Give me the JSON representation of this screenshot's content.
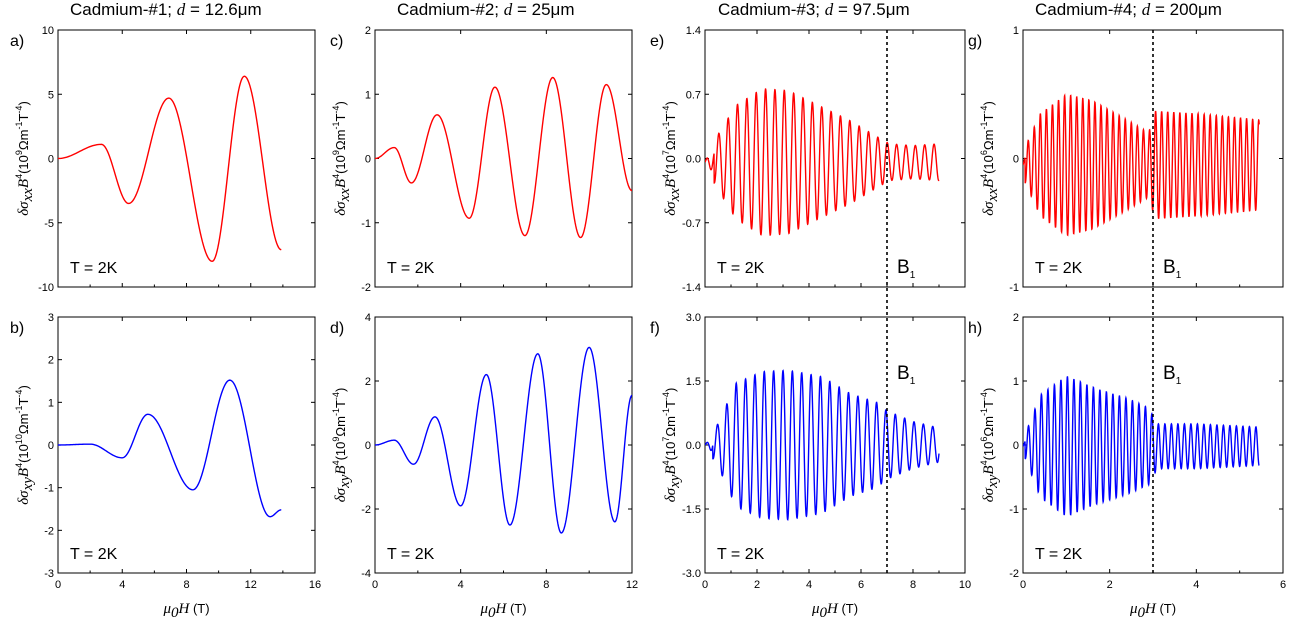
{
  "figure": {
    "temperature_label": "T = 2K",
    "marker_label_main": "B",
    "marker_label_sub": "1",
    "xlabel": {
      "symbol": "μ",
      "sub": "0",
      "var": "H",
      "unit": " (T)"
    }
  },
  "columns": [
    {
      "title_prefix": "Cadmium-#1; ",
      "title_var": "d",
      "title_suffix": " = 12.6μm"
    },
    {
      "title_prefix": "Cadmium-#2; ",
      "title_var": "d",
      "title_suffix": " = 25μm"
    },
    {
      "title_prefix": "Cadmium-#3; ",
      "title_var": "d",
      "title_suffix": " = 97.5μm"
    },
    {
      "title_prefix": "Cadmium-#4; ",
      "title_var": "d",
      "title_suffix": " = 200μm"
    }
  ],
  "colors": {
    "top_series": "#ff0000",
    "bottom_series": "#0000ff",
    "axes": "#000000"
  },
  "chart_data": [
    {
      "panel": "a)",
      "type": "line",
      "color": "#ff0000",
      "xlabel": "",
      "ylabel_sub": "xx",
      "ylabel_exp": "9",
      "xlim": [
        0,
        16
      ],
      "xticks": [
        0,
        4,
        8,
        12,
        16
      ],
      "ylim": [
        -10,
        10
      ],
      "yticks": [
        "10",
        "5",
        "0",
        "-5",
        "-10"
      ],
      "ytick_values": [
        10,
        5,
        0,
        -5,
        -10
      ],
      "envelope": [
        [
          0,
          0
        ],
        [
          2.7,
          1.1
        ],
        [
          4.4,
          3.5
        ],
        [
          6.9,
          4.7
        ],
        [
          9.6,
          8.0
        ],
        [
          11.6,
          6.4
        ],
        [
          13.9,
          7.1
        ]
      ],
      "freq": [
        [
          0,
          0.07
        ],
        [
          4.4,
          0.32
        ],
        [
          9.6,
          0.39
        ],
        [
          14,
          0.4
        ]
      ],
      "phase0": 0,
      "xmax_data": 13.9,
      "x_end_value": -7.1,
      "gen": "peaks",
      "peaks": [
        [
          0,
          0
        ],
        [
          2.7,
          1.1
        ],
        [
          4.4,
          -3.5
        ],
        [
          6.9,
          4.7
        ],
        [
          9.6,
          -8.0
        ],
        [
          11.6,
          6.4
        ],
        [
          13.9,
          -7.1
        ]
      ],
      "temperature": "T = 2K"
    },
    {
      "panel": "b)",
      "type": "line",
      "color": "#0000ff",
      "xlabel": "μ0H (T)",
      "ylabel_sub": "xy",
      "ylabel_exp": "10",
      "xlim": [
        0,
        16
      ],
      "xticks": [
        0,
        4,
        8,
        12,
        16
      ],
      "ylim": [
        -3,
        3
      ],
      "yticks": [
        "3",
        "2",
        "1",
        "0",
        "-1",
        "-2",
        "-3"
      ],
      "ytick_values": [
        3,
        2,
        1,
        0,
        -1,
        -2,
        -3
      ],
      "gen": "peaks",
      "peaks": [
        [
          0,
          0
        ],
        [
          2.0,
          0.02
        ],
        [
          4.0,
          -0.3
        ],
        [
          5.6,
          0.72
        ],
        [
          8.4,
          -1.05
        ],
        [
          10.7,
          1.52
        ],
        [
          13.2,
          -1.68
        ],
        [
          13.9,
          -1.52
        ]
      ],
      "temperature": "T = 2K"
    },
    {
      "panel": "c)",
      "type": "line",
      "color": "#ff0000",
      "xlabel": "",
      "ylabel_sub": "xx",
      "ylabel_exp": "9",
      "xlim": [
        0,
        12
      ],
      "xticks": [
        0,
        4,
        8,
        12
      ],
      "ylim": [
        -2,
        2
      ],
      "yticks": [
        "2",
        "1",
        "0",
        "-1",
        "-2"
      ],
      "ytick_values": [
        2,
        1,
        0,
        -1,
        -2
      ],
      "gen": "peaks",
      "peaks": [
        [
          0,
          0
        ],
        [
          0.9,
          0.17
        ],
        [
          1.7,
          -0.38
        ],
        [
          2.9,
          0.68
        ],
        [
          4.4,
          -0.93
        ],
        [
          5.6,
          1.11
        ],
        [
          7.0,
          -1.2
        ],
        [
          8.3,
          1.26
        ],
        [
          9.6,
          -1.23
        ],
        [
          10.8,
          1.15
        ],
        [
          12.0,
          -0.5
        ]
      ],
      "temperature": "T = 2K"
    },
    {
      "panel": "d)",
      "type": "line",
      "color": "#0000ff",
      "xlabel": "μ0H (T)",
      "ylabel_sub": "xy",
      "ylabel_exp": "9",
      "xlim": [
        0,
        12
      ],
      "xticks": [
        0,
        4,
        8,
        12
      ],
      "ylim": [
        -4,
        4
      ],
      "yticks": [
        "4",
        "2",
        "0",
        "-2",
        "-4"
      ],
      "ytick_values": [
        4,
        2,
        0,
        -2,
        -4
      ],
      "gen": "peaks",
      "peaks": [
        [
          0,
          0
        ],
        [
          0.9,
          0.15
        ],
        [
          1.8,
          -0.6
        ],
        [
          2.8,
          0.88
        ],
        [
          4.0,
          -1.9
        ],
        [
          5.2,
          2.2
        ],
        [
          6.3,
          -2.5
        ],
        [
          7.6,
          2.85
        ],
        [
          8.7,
          -2.75
        ],
        [
          10.0,
          3.05
        ],
        [
          11.2,
          -2.4
        ],
        [
          12.0,
          1.55
        ]
      ],
      "temperature": "T = 2K"
    },
    {
      "panel": "e)",
      "type": "line",
      "color": "#ff0000",
      "xlabel": "",
      "ylabel_sub": "xx",
      "ylabel_exp": "7",
      "xlim": [
        0,
        10
      ],
      "xticks": [
        0,
        2,
        4,
        6,
        8,
        10
      ],
      "ylim": [
        -1.4,
        1.4
      ],
      "yticks": [
        "1.4",
        "0.7",
        "0.0",
        "-0.7",
        "-1.4"
      ],
      "ytick_values": [
        1.4,
        0.7,
        0,
        -0.7,
        -1.4
      ],
      "gen": "osc",
      "x_end": 9.0,
      "period": 0.36,
      "x_start_osc": 0.35,
      "amp_env": [
        [
          0,
          0.05
        ],
        [
          0.5,
          0.3
        ],
        [
          1.2,
          0.62
        ],
        [
          2.2,
          0.8
        ],
        [
          3.2,
          0.78
        ],
        [
          4.5,
          0.6
        ],
        [
          5.6,
          0.45
        ],
        [
          6.6,
          0.28
        ],
        [
          7.1,
          0.2
        ],
        [
          8.0,
          0.18
        ],
        [
          9.0,
          0.2
        ]
      ],
      "offset": -0.04,
      "marker_x": 7.0,
      "marker_label": "B1",
      "temperature": "T = 2K"
    },
    {
      "panel": "f)",
      "type": "line",
      "color": "#0000ff",
      "xlabel": "μ0H (T)",
      "ylabel_sub": "xy",
      "ylabel_exp": "7",
      "xlim": [
        0,
        10
      ],
      "xticks": [
        0,
        2,
        4,
        6,
        8,
        10
      ],
      "ylim": [
        -3.0,
        3.0
      ],
      "yticks": [
        "3.0",
        "1.5",
        "0.0",
        "-1.5",
        "-3.0"
      ],
      "ytick_values": [
        3,
        1.5,
        0,
        -1.5,
        -3
      ],
      "gen": "osc",
      "x_end": 9.0,
      "period": 0.36,
      "x_start_osc": 0.3,
      "amp_env": [
        [
          0,
          0.05
        ],
        [
          0.5,
          0.5
        ],
        [
          1.2,
          1.45
        ],
        [
          2.2,
          1.72
        ],
        [
          3.2,
          1.75
        ],
        [
          4.5,
          1.6
        ],
        [
          5.6,
          1.2
        ],
        [
          6.6,
          1.0
        ],
        [
          7.0,
          0.8
        ],
        [
          8.0,
          0.55
        ],
        [
          9.0,
          0.4
        ]
      ],
      "offset": 0.0,
      "marker_x": 7.0,
      "marker_label": "B1",
      "temperature": "T = 2K"
    },
    {
      "panel": "g)",
      "type": "line",
      "color": "#ff0000",
      "xlabel": "",
      "ylabel_sub": "xx",
      "ylabel_exp": "6",
      "xlim": [
        0,
        6
      ],
      "xticks": [
        0,
        2,
        4,
        6
      ],
      "ylim": [
        -1,
        1
      ],
      "yticks": [
        "1",
        "0",
        "-1"
      ],
      "ytick_values": [
        1,
        0,
        -1
      ],
      "gen": "osc",
      "x_end": 5.45,
      "period": 0.14,
      "x_start_osc": 0.05,
      "amp_env": [
        [
          0,
          0.1
        ],
        [
          0.4,
          0.4
        ],
        [
          1.0,
          0.55
        ],
        [
          1.6,
          0.5
        ],
        [
          2.4,
          0.35
        ],
        [
          2.9,
          0.25
        ],
        [
          3.05,
          0.42
        ],
        [
          4.0,
          0.4
        ],
        [
          5.45,
          0.35
        ]
      ],
      "offset": -0.05,
      "marker_x": 3.0,
      "marker_label": "B1",
      "temperature": "T = 2K"
    },
    {
      "panel": "h)",
      "type": "line",
      "color": "#0000ff",
      "xlabel": "μ0H (T)",
      "ylabel_sub": "xy",
      "ylabel_exp": "6",
      "xlim": [
        0,
        6
      ],
      "xticks": [
        0,
        2,
        4,
        6
      ],
      "ylim": [
        -2,
        2
      ],
      "yticks": [
        "2",
        "1",
        "0",
        "-1",
        "-2"
      ],
      "ytick_values": [
        2,
        1,
        0,
        -1,
        -2
      ],
      "gen": "osc",
      "x_end": 5.45,
      "period": 0.15,
      "x_start_osc": 0.05,
      "amp_env": [
        [
          0,
          0.1
        ],
        [
          0.4,
          0.8
        ],
        [
          1.0,
          1.1
        ],
        [
          1.7,
          0.9
        ],
        [
          2.4,
          0.75
        ],
        [
          2.9,
          0.6
        ],
        [
          3.1,
          0.35
        ],
        [
          4.0,
          0.35
        ],
        [
          5.45,
          0.3
        ]
      ],
      "offset": -0.02,
      "marker_x": 3.0,
      "marker_label": "B1",
      "temperature": "T = 2K"
    }
  ]
}
